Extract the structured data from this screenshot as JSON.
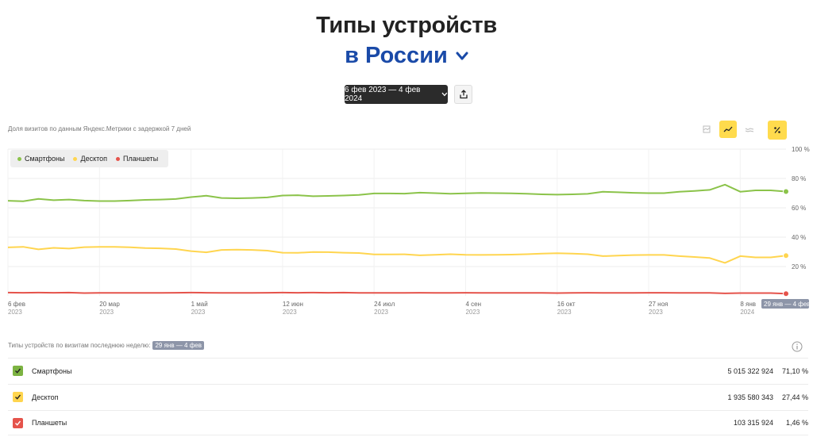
{
  "header": {
    "title_line1": "Типы устройств",
    "title_line2": "в России",
    "date_range_button": "6 фев 2023 — 4 фев 2024"
  },
  "chart_subtitle": "Доля визитов по данным Яндекс.Метрики с задержкой 7 дней",
  "legend": [
    {
      "label": "Смартфоны",
      "color": "#8bc34a"
    },
    {
      "label": "Десктоп",
      "color": "#ffd54f"
    },
    {
      "label": "Планшеты",
      "color": "#e5534b"
    }
  ],
  "chart_data": {
    "type": "line",
    "y_ticks": [
      "20 %",
      "40 %",
      "60 %",
      "80 %",
      "100 %"
    ],
    "ylim": [
      0,
      100
    ],
    "grid": true,
    "x_ticks": [
      {
        "day": "6 фев",
        "year": "2023"
      },
      {
        "day": "20 мар",
        "year": "2023"
      },
      {
        "day": "1 май",
        "year": "2023"
      },
      {
        "day": "12 июн",
        "year": "2023"
      },
      {
        "day": "24 июл",
        "year": "2023"
      },
      {
        "day": "4 сен",
        "year": "2023"
      },
      {
        "day": "16 окт",
        "year": "2023"
      },
      {
        "day": "27 ноя",
        "year": "2023"
      },
      {
        "day": "8 янв",
        "year": "2024"
      }
    ],
    "highlight_label": "29 янв — 4 фев",
    "x": [
      "2023-02-06",
      "2023-02-13",
      "2023-02-20",
      "2023-02-27",
      "2023-03-06",
      "2023-03-13",
      "2023-03-20",
      "2023-03-27",
      "2023-04-03",
      "2023-04-10",
      "2023-04-17",
      "2023-04-24",
      "2023-05-01",
      "2023-05-08",
      "2023-05-15",
      "2023-05-22",
      "2023-05-29",
      "2023-06-05",
      "2023-06-12",
      "2023-06-19",
      "2023-06-26",
      "2023-07-03",
      "2023-07-10",
      "2023-07-17",
      "2023-07-24",
      "2023-07-31",
      "2023-08-07",
      "2023-08-14",
      "2023-08-21",
      "2023-08-28",
      "2023-09-04",
      "2023-09-11",
      "2023-09-18",
      "2023-09-25",
      "2023-10-02",
      "2023-10-09",
      "2023-10-16",
      "2023-10-23",
      "2023-10-30",
      "2023-11-06",
      "2023-11-13",
      "2023-11-20",
      "2023-11-27",
      "2023-12-04",
      "2023-12-11",
      "2023-12-18",
      "2023-12-25",
      "2024-01-01",
      "2024-01-08",
      "2024-01-15",
      "2024-01-22",
      "2024-01-29"
    ],
    "series": [
      {
        "name": "Смартфоны",
        "color": "#8bc34a",
        "values": [
          64.8,
          64.5,
          66.1,
          65.2,
          65.6,
          64.9,
          64.6,
          64.6,
          64.9,
          65.4,
          65.6,
          66.0,
          67.3,
          68.2,
          66.7,
          66.5,
          66.7,
          67.1,
          68.4,
          68.6,
          67.9,
          68.1,
          68.4,
          68.8,
          69.8,
          69.8,
          69.7,
          70.3,
          70.0,
          69.6,
          69.9,
          70.1,
          70.0,
          69.9,
          69.6,
          69.2,
          69.0,
          69.2,
          69.5,
          70.9,
          70.6,
          70.2,
          70.0,
          70.0,
          70.9,
          71.5,
          72.2,
          75.8,
          71.0,
          71.9,
          71.9,
          71.1
        ]
      },
      {
        "name": "Десктоп",
        "color": "#ffd54f",
        "values": [
          33.0,
          33.4,
          31.7,
          32.7,
          32.2,
          33.2,
          33.4,
          33.4,
          33.1,
          32.6,
          32.4,
          31.9,
          30.5,
          29.7,
          31.3,
          31.5,
          31.3,
          30.8,
          29.4,
          29.3,
          29.9,
          29.8,
          29.4,
          29.2,
          28.2,
          28.2,
          28.3,
          27.6,
          28.0,
          28.4,
          28.0,
          27.9,
          28.0,
          28.1,
          28.4,
          28.8,
          29.1,
          28.8,
          28.4,
          27.1,
          27.4,
          27.8,
          27.9,
          27.9,
          27.1,
          26.5,
          25.8,
          22.5,
          27.1,
          26.2,
          26.2,
          27.4
        ]
      },
      {
        "name": "Планшеты",
        "color": "#e5534b",
        "values": [
          2.2,
          2.1,
          2.2,
          2.1,
          2.2,
          1.9,
          2.0,
          2.0,
          2.0,
          2.0,
          2.0,
          2.1,
          2.2,
          2.1,
          2.0,
          2.0,
          2.0,
          2.1,
          2.2,
          2.1,
          2.2,
          2.1,
          2.2,
          2.0,
          2.0,
          2.0,
          2.0,
          2.1,
          2.0,
          2.0,
          2.1,
          2.0,
          2.0,
          2.0,
          2.0,
          2.0,
          1.9,
          2.0,
          2.1,
          2.0,
          2.0,
          2.0,
          2.1,
          2.1,
          2.0,
          2.0,
          2.0,
          1.7,
          1.9,
          1.9,
          1.9,
          1.5
        ]
      }
    ]
  },
  "table": {
    "caption": "Типы устройств по визитам последнюю неделю:",
    "badge": "29 янв — 4 фев",
    "rows": [
      {
        "name": "Смартфоны",
        "count": "5 015 322 924",
        "pct": "71,10 %",
        "color": "#7cb342"
      },
      {
        "name": "Десктоп",
        "count": "1 935 580 343",
        "pct": "27,44 %",
        "color": "#ffd54f"
      },
      {
        "name": "Планшеты",
        "count": "103 315 924",
        "pct": "1,46 %",
        "color": "#e5534b"
      }
    ]
  }
}
